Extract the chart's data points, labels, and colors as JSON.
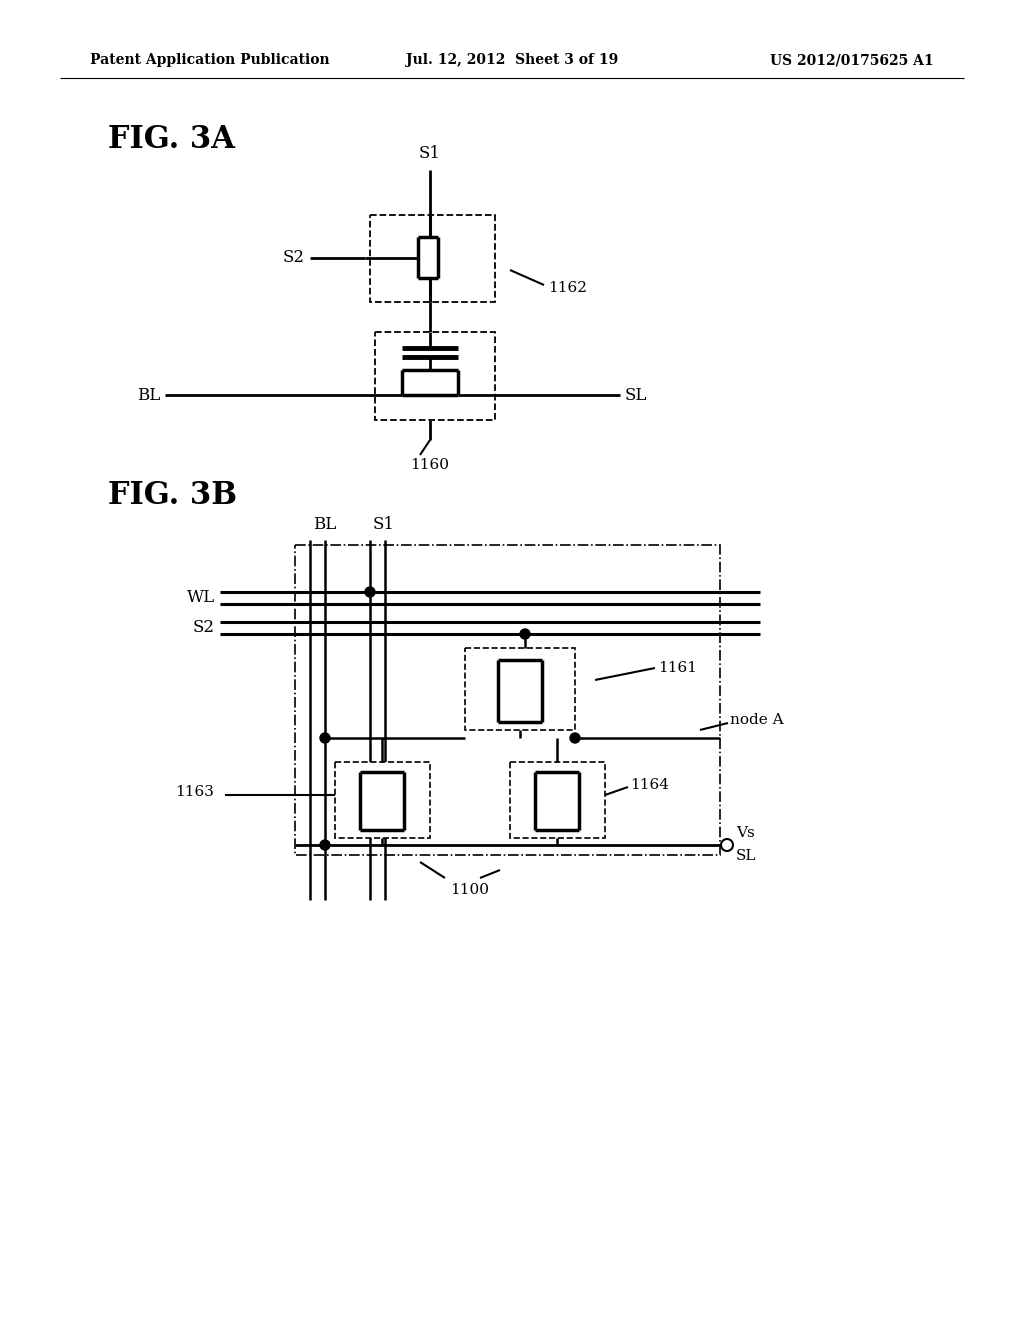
{
  "header_left": "Patent Application Publication",
  "header_mid": "Jul. 12, 2012  Sheet 3 of 19",
  "header_right": "US 2012/0175625 A1",
  "fig3a_label": "FIG. 3A",
  "fig3b_label": "FIG. 3B",
  "bg_color": "#ffffff",
  "line_color": "#000000"
}
